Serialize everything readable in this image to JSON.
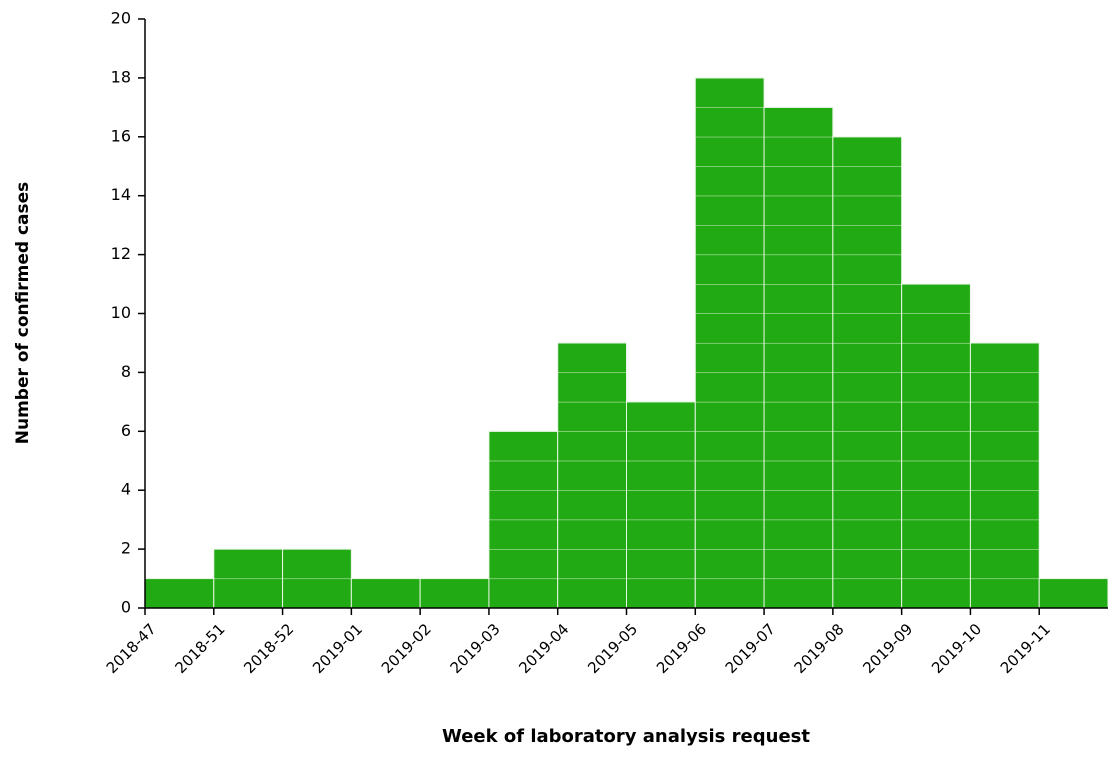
{
  "chart_data": {
    "type": "bar",
    "x_label": "Week of laboratory analysis request",
    "y_label": "Number of confirmed cases",
    "categories": [
      "2018-47",
      "2018-51",
      "2018-52",
      "2019-01",
      "2019-02",
      "2019-03",
      "2019-04",
      "2019-05",
      "2019-06",
      "2019-07",
      "2019-08",
      "2019-09",
      "2019-10",
      "2019-11"
    ],
    "values": [
      1,
      2,
      2,
      1,
      1,
      6,
      9,
      7,
      18,
      17,
      16,
      11,
      9,
      1
    ],
    "color": "#22aa14",
    "ylim": [
      0,
      20
    ],
    "yticks": [
      0,
      2,
      4,
      6,
      8,
      10,
      12,
      14,
      16,
      18,
      20
    ],
    "grid": false
  }
}
